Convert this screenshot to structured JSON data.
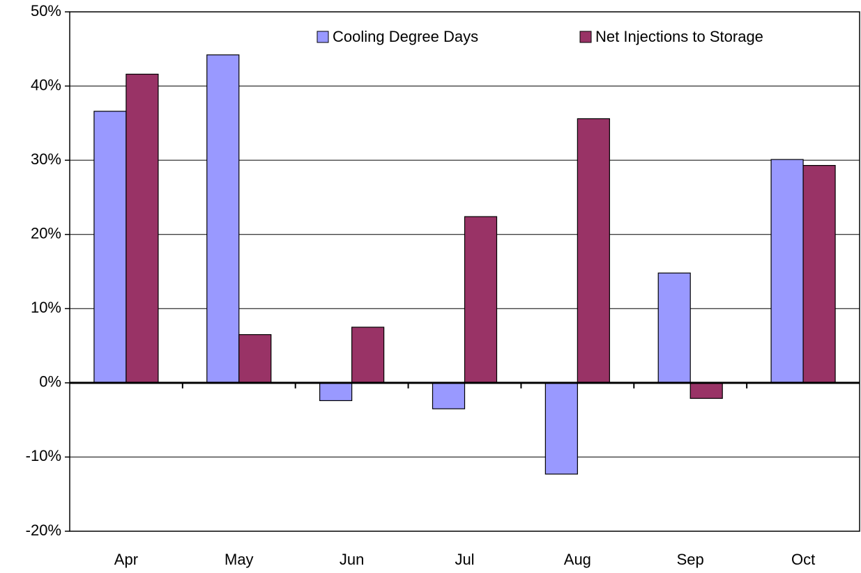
{
  "chart_data": {
    "type": "bar",
    "categories": [
      "Apr",
      "May",
      "Jun",
      "Jul",
      "Aug",
      "Sep",
      "Oct"
    ],
    "series": [
      {
        "name": "Cooling Degree Days",
        "color": "#9999ff",
        "values": [
          36.6,
          44.2,
          -2.4,
          -3.5,
          -12.3,
          14.8,
          30.1
        ]
      },
      {
        "name": "Net Injections to Storage",
        "color": "#993366",
        "values": [
          41.6,
          6.5,
          7.5,
          22.4,
          35.6,
          -2.1,
          29.3
        ]
      }
    ],
    "ylim": [
      -20,
      50
    ],
    "yticks": [
      {
        "value": -20,
        "label": "-20%"
      },
      {
        "value": -10,
        "label": "-10%"
      },
      {
        "value": 0,
        "label": "0%"
      },
      {
        "value": 10,
        "label": "10%"
      },
      {
        "value": 20,
        "label": "20%"
      },
      {
        "value": 30,
        "label": "30%"
      },
      {
        "value": 40,
        "label": "40%"
      },
      {
        "value": 50,
        "label": "50%"
      }
    ],
    "grid": true,
    "legend": "top"
  }
}
